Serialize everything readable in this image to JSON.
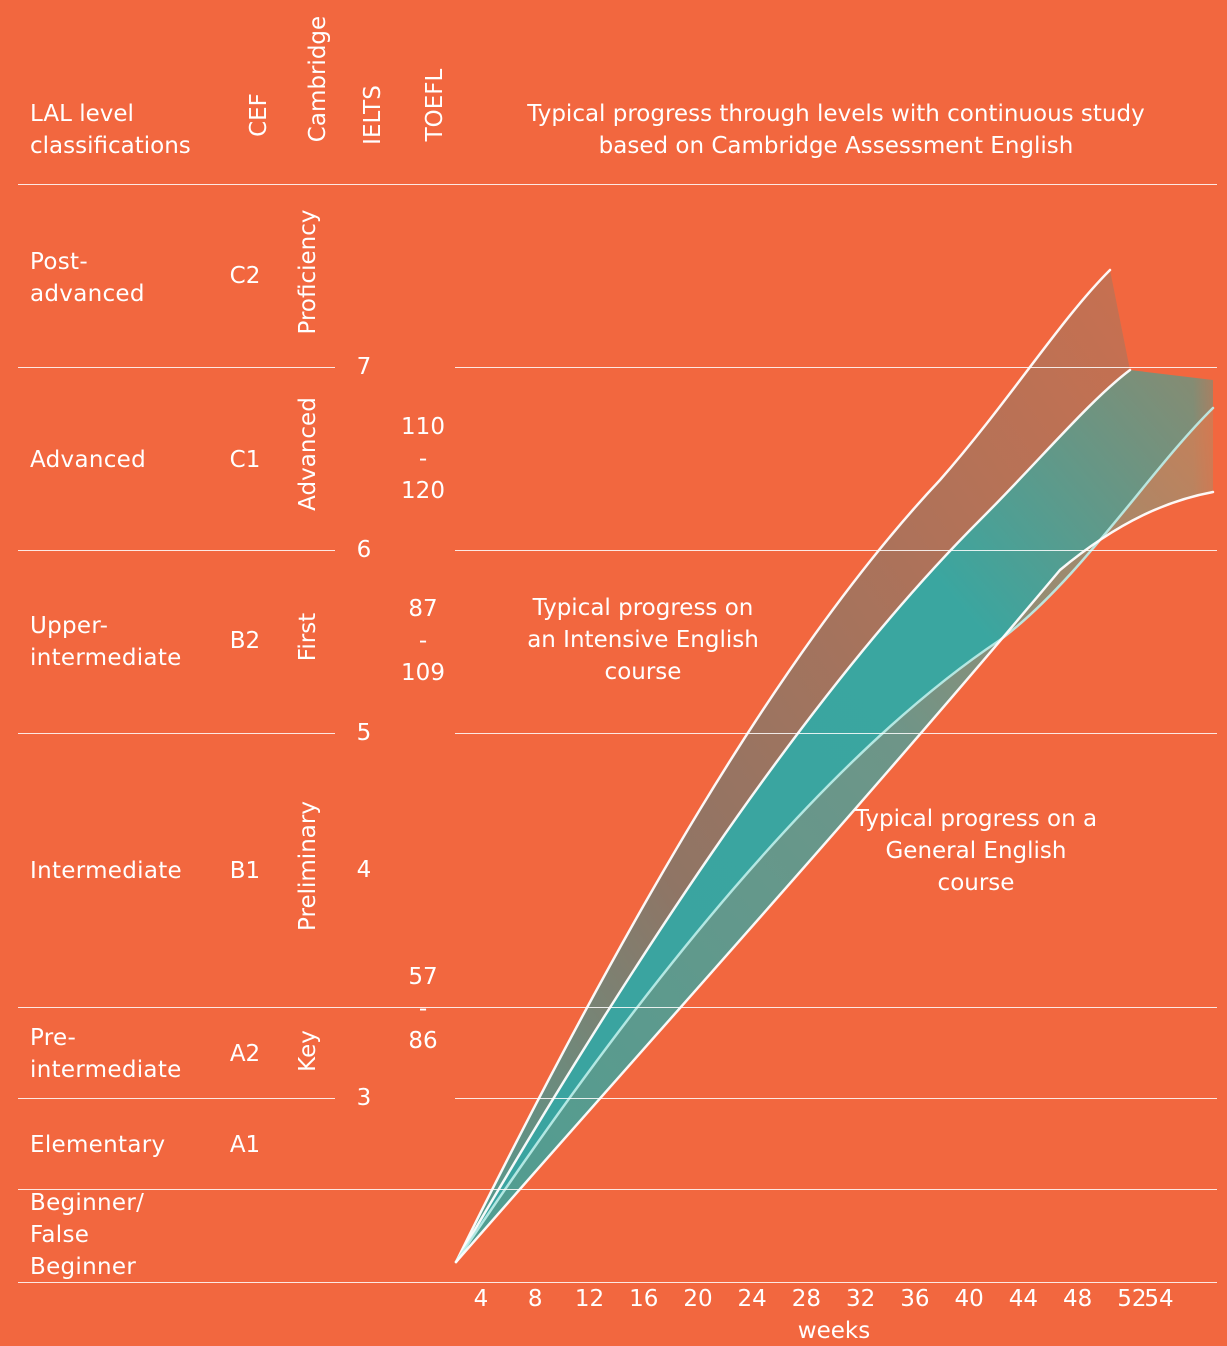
{
  "header": {
    "lal": "LAL level classifications",
    "cef": "CEF",
    "cambridge": "Cambridge",
    "ielts": "IELTS",
    "toefl": "TOEFL",
    "title_line1": "Typical progress through levels with continuous study",
    "title_line2": "based on Cambridge Assessment English"
  },
  "levels": [
    {
      "lal": "Post-advanced",
      "cef": "C2",
      "cambridge": "Proficiency"
    },
    {
      "lal": "Advanced",
      "cef": "C1",
      "cambridge": "Advanced"
    },
    {
      "lal": "Upper-intermediate",
      "cef": "B2",
      "cambridge": "First"
    },
    {
      "lal": "Intermediate",
      "cef": "B1",
      "cambridge": "Preliminary"
    },
    {
      "lal": "Pre-intermediate",
      "cef": "A2",
      "cambridge": "Key"
    },
    {
      "lal": "Elementary",
      "cef": "A1",
      "cambridge": ""
    },
    {
      "lal": "Beginner/ False Beginner",
      "cef": "",
      "cambridge": ""
    }
  ],
  "ielts_ticks": [
    "7",
    "6",
    "5",
    "4",
    "3"
  ],
  "toefl_ranges": [
    {
      "top": "110",
      "dash": "-",
      "bottom": "120"
    },
    {
      "top": "87",
      "dash": "-",
      "bottom": "109"
    },
    {
      "top": "57",
      "dash": "-",
      "bottom": "86"
    }
  ],
  "annotations": {
    "intensive": "Typical progress on an Intensive English course",
    "general": "Typical progress on a General English course"
  },
  "colors": {
    "background": "#F2673F",
    "teal": "#3AA3A0",
    "brown": "#8E7268",
    "line": "#ffffff"
  },
  "chart_data": {
    "type": "area",
    "xlabel": "weeks",
    "x_ticks": [
      4,
      8,
      12,
      16,
      20,
      24,
      28,
      32,
      36,
      40,
      44,
      48,
      52,
      54
    ],
    "xlim": [
      0,
      55
    ],
    "ylabel": "",
    "ylim_levels": [
      "Beginner",
      "Post-advanced"
    ],
    "series": [
      {
        "name": "Intensive",
        "x": [
          2,
          10,
          20,
          30,
          40,
          50
        ],
        "y_level": [
          1,
          2.9,
          4.3,
          5.6,
          6.6,
          7.5
        ]
      },
      {
        "name": "General",
        "x": [
          2,
          12,
          22,
          32,
          42,
          54
        ],
        "y_level": [
          1,
          2.5,
          3.5,
          4.3,
          5.0,
          5.5
        ]
      }
    ]
  }
}
